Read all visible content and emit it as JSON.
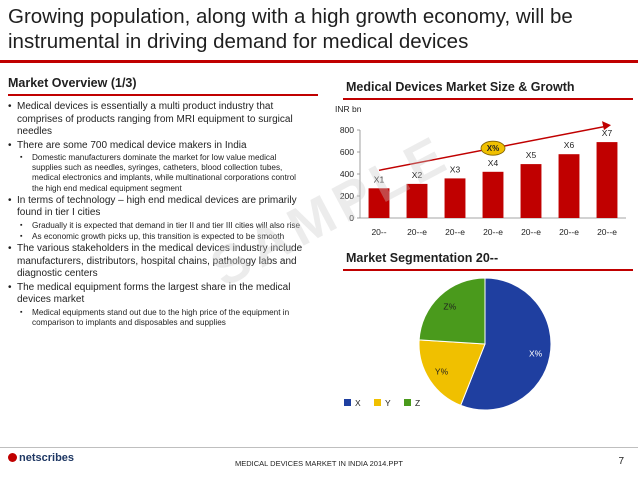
{
  "title": "Growing population, along with a high growth economy, will be instrumental in driving demand for medical devices",
  "left_section": {
    "heading": "Market Overview (1/3)",
    "bullets": [
      {
        "text": "Medical devices is essentially a multi product industry that comprises of products ranging from MRI equipment to surgical needles",
        "sub": []
      },
      {
        "text": "There are some 700 medical device makers in India",
        "sub": [
          "Domestic manufacturers dominate the market for low value medical supplies  such as needles, syringes, catheters, blood collection tubes, medical electronics and implants, while multinational corporations control the high end medical equipment segment"
        ]
      },
      {
        "text": "In terms of technology – high end medical devices are primarily found in tier I cities",
        "sub": [
          "Gradually it is expected that demand in tier II and tier III cities will also rise",
          "As economic growth picks up, this transition is expected to be smooth"
        ]
      },
      {
        "text": "The various stakeholders in the medical devices industry include manufacturers, distributors, hospital chains, pathology labs and diagnostic centers",
        "sub": []
      },
      {
        "text": "The medical equipment forms the largest share in the medical devices market",
        "sub": [
          "Medical equipments stand out due to the high price of the equipment in comparison to implants and disposables and supplies"
        ]
      }
    ]
  },
  "bar_section": {
    "heading": "Medical Devices Market Size & Growth",
    "unit_label": "INR bn",
    "cagr_label": "X%"
  },
  "pie_section": {
    "heading": "Market Segmentation 20--"
  },
  "watermark": "SAMPLE",
  "footer": {
    "logo": "netscribes",
    "center": "MEDICAL DEVICES MARKET IN INDIA 2014.PPT",
    "page": "7"
  },
  "colors": {
    "accent": "#c00000",
    "bar": "#c00000",
    "pie_x": "#1f3fa0",
    "pie_y": "#f0c000",
    "pie_z": "#4a9a1c"
  },
  "chart_data": [
    {
      "type": "bar",
      "categories": [
        "20--",
        "20--e",
        "20--e",
        "20--e",
        "20--e",
        "20--e",
        "20--e"
      ],
      "values": [
        270,
        310,
        360,
        420,
        490,
        580,
        690
      ],
      "data_labels": [
        "X1",
        "X2",
        "X3",
        "X4",
        "X5",
        "X6",
        "X7"
      ],
      "ylim": [
        0,
        800
      ],
      "yticks": [
        0,
        200,
        400,
        600,
        800
      ]
    },
    {
      "type": "pie",
      "labels": [
        "X",
        "Y",
        "Z"
      ],
      "values": [
        56,
        20,
        24
      ],
      "data_labels": [
        "X%",
        "Y%",
        "Z%"
      ],
      "legend": "bottom-left"
    }
  ]
}
